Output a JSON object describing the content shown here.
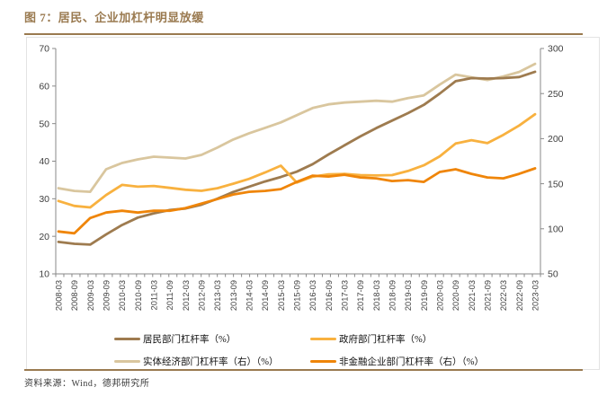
{
  "header": {
    "title": "图 7：居民、企业加杠杆明显放缓"
  },
  "footer": {
    "source": "资料来源：Wind，德邦研究所"
  },
  "colors": {
    "accent_brown": "#9A7A50",
    "axis_line": "#898989",
    "axis_text": "#404040",
    "household": "#9E7B4F",
    "government": "#F8B13F",
    "real_economy": "#D9C69E",
    "corporate": "#EF8509"
  },
  "chart_data": {
    "type": "line",
    "title": "图 7：居民、企业加杠杆明显放缓",
    "grid": false,
    "legend_position": "bottom",
    "left_axis": {
      "min": 10,
      "max": 70,
      "step": 10
    },
    "right_axis": {
      "min": 50,
      "max": 300,
      "step": 50
    },
    "categories": [
      "2008-03",
      "2008-09",
      "2009-03",
      "2009-09",
      "2010-03",
      "2010-09",
      "2011-03",
      "2011-09",
      "2012-03",
      "2012-09",
      "2013-03",
      "2013-09",
      "2014-03",
      "2014-09",
      "2015-03",
      "2015-09",
      "2016-03",
      "2016-09",
      "2017-03",
      "2017-09",
      "2018-03",
      "2018-09",
      "2019-03",
      "2019-09",
      "2020-03",
      "2020-09",
      "2021-03",
      "2021-09",
      "2022-03",
      "2022-09",
      "2023-03"
    ],
    "series": [
      {
        "name": "居民部门杠杆率（%）",
        "axis": "left",
        "color_key": "household",
        "values": [
          18.5,
          18.0,
          17.8,
          20.5,
          23.0,
          25.0,
          26.1,
          27.0,
          27.4,
          28.4,
          30.0,
          31.8,
          33.2,
          34.6,
          35.8,
          37.2,
          39.2,
          41.8,
          44.2,
          46.6,
          48.8,
          50.8,
          52.8,
          55.0,
          58.0,
          61.3,
          62.1,
          62.0,
          62.1,
          62.4,
          63.8
        ]
      },
      {
        "name": "政府部门杠杆率（%）",
        "axis": "left",
        "color_key": "government",
        "values": [
          29.4,
          28.1,
          27.7,
          31.0,
          33.7,
          33.2,
          33.4,
          32.9,
          32.4,
          32.1,
          32.8,
          34.0,
          35.3,
          37.0,
          38.8,
          34.3,
          35.9,
          36.5,
          36.6,
          36.3,
          36.2,
          36.3,
          37.4,
          38.9,
          41.3,
          44.7,
          45.6,
          44.8,
          47.0,
          49.5,
          52.5
        ]
      },
      {
        "name": "实体经济部门杠杆率（右）（%）",
        "axis": "right",
        "color_key": "real_economy",
        "values": [
          145,
          142,
          141,
          166,
          173,
          177,
          180,
          179,
          178,
          182,
          190,
          199,
          206,
          212,
          218,
          226,
          234,
          238,
          240,
          241,
          242,
          241,
          245,
          248,
          260,
          271,
          268,
          265,
          269,
          274,
          283
        ]
      },
      {
        "name": "非金融企业部门杠杆率（右）（%）",
        "axis": "right",
        "color_key": "corporate",
        "values": [
          97,
          95,
          112,
          118,
          120,
          118,
          120,
          120,
          123,
          128,
          133,
          138,
          141,
          142,
          144,
          152,
          159,
          158,
          160,
          157,
          156,
          153,
          154,
          152,
          163,
          166,
          161,
          157,
          156,
          161,
          167
        ]
      }
    ]
  }
}
